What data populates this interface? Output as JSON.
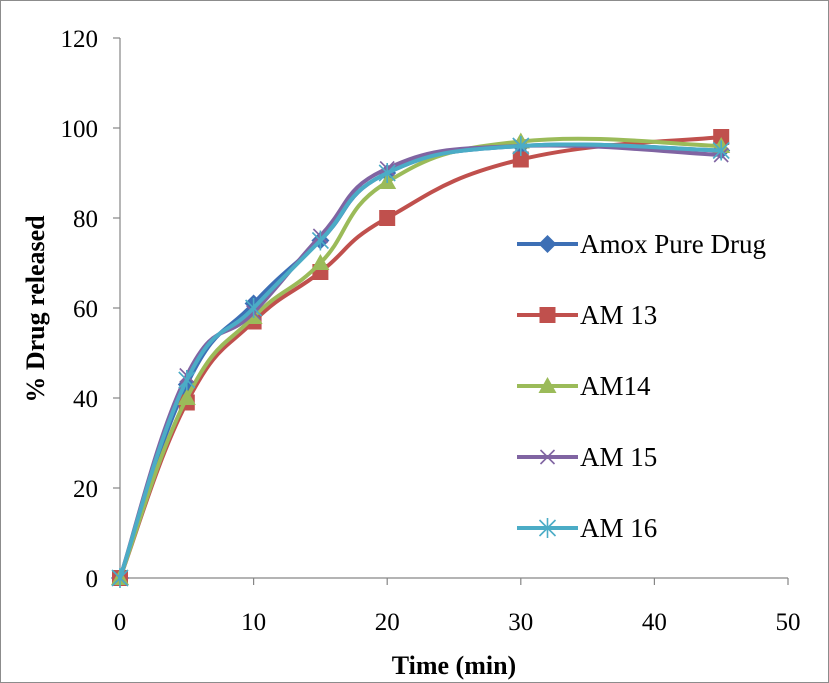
{
  "chart_data": {
    "type": "line",
    "title": "",
    "xlabel": "Time (min)",
    "ylabel": "% Drug released",
    "xlim": [
      0,
      50
    ],
    "ylim": [
      0,
      120
    ],
    "xticks": [
      0,
      10,
      20,
      30,
      40,
      50
    ],
    "yticks": [
      0,
      20,
      40,
      60,
      80,
      100,
      120
    ],
    "grid": false,
    "smooth": true,
    "legend_position": "right",
    "series": [
      {
        "name": "Amox Pure Drug",
        "color": "#3d6fb5",
        "marker": "diamond",
        "x": [
          0,
          5,
          10,
          15,
          20,
          30,
          45
        ],
        "y": [
          0,
          43,
          61,
          75,
          90,
          96,
          95
        ]
      },
      {
        "name": "AM 13",
        "color": "#c0504d",
        "marker": "square",
        "x": [
          0,
          5,
          10,
          15,
          20,
          30,
          45
        ],
        "y": [
          0,
          39,
          57,
          68,
          80,
          93,
          98
        ]
      },
      {
        "name": "AM14",
        "color": "#9bbb59",
        "marker": "triangle",
        "x": [
          0,
          5,
          10,
          15,
          20,
          30,
          45
        ],
        "y": [
          0,
          40,
          58,
          70,
          88,
          97,
          96
        ]
      },
      {
        "name": "AM 15",
        "color": "#8064a2",
        "marker": "x",
        "x": [
          0,
          5,
          10,
          15,
          20,
          30,
          45
        ],
        "y": [
          0,
          45,
          59,
          76,
          91,
          96,
          94
        ]
      },
      {
        "name": "AM 16",
        "color": "#4bacc6",
        "marker": "star",
        "x": [
          0,
          5,
          10,
          15,
          20,
          30,
          45
        ],
        "y": [
          0,
          44,
          60,
          75,
          90,
          96,
          95
        ]
      }
    ]
  }
}
